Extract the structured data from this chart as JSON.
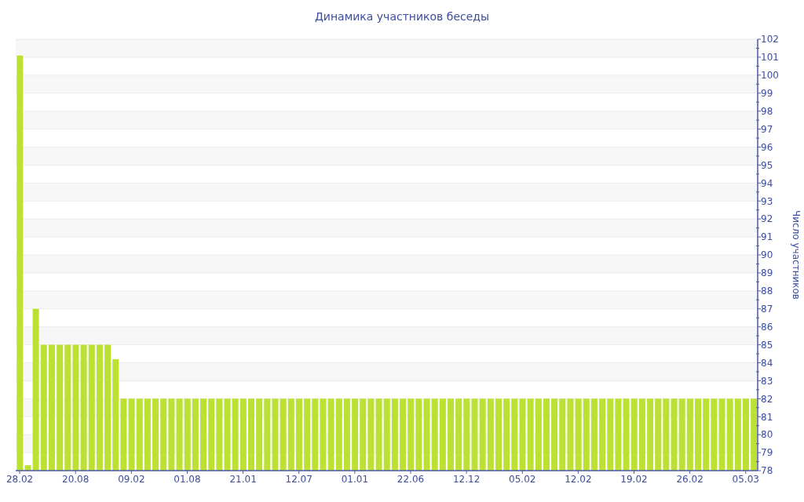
{
  "chart_data": {
    "type": "bar",
    "title": "Динамика участников беседы",
    "ylabel": "Число участников",
    "categories": [
      "28.02",
      null,
      null,
      null,
      null,
      null,
      null,
      "20.08",
      null,
      null,
      null,
      null,
      null,
      null,
      "09.02",
      null,
      null,
      null,
      null,
      null,
      null,
      "01.08",
      null,
      null,
      null,
      null,
      null,
      null,
      "21.01",
      null,
      null,
      null,
      null,
      null,
      null,
      "12.07",
      null,
      null,
      null,
      null,
      null,
      null,
      "01.01",
      null,
      null,
      null,
      null,
      null,
      null,
      "22.06",
      null,
      null,
      null,
      null,
      null,
      null,
      "12.12",
      null,
      null,
      null,
      null,
      null,
      null,
      "05.02",
      null,
      null,
      null,
      null,
      null,
      null,
      "12.02",
      null,
      null,
      null,
      null,
      null,
      null,
      "19.02",
      null,
      null,
      null,
      null,
      null,
      null,
      "26.02",
      null,
      null,
      null,
      null,
      null,
      null,
      "05.03",
      null
    ],
    "values": [
      101.1,
      78.3,
      87,
      85,
      85,
      85,
      85,
      85,
      85,
      85,
      85,
      85,
      84.2,
      82,
      82,
      82,
      82,
      82,
      82,
      82,
      82,
      82,
      82,
      82,
      82,
      82,
      82,
      82,
      82,
      82,
      82,
      82,
      82,
      82,
      82,
      82,
      82,
      82,
      82,
      82,
      82,
      82,
      82,
      82,
      82,
      82,
      82,
      82,
      82,
      82,
      82,
      82,
      82,
      82,
      82,
      82,
      82,
      82,
      82,
      82,
      82,
      82,
      82,
      82,
      82,
      82,
      82,
      82,
      82,
      82,
      82,
      82,
      82,
      82,
      82,
      82,
      82,
      82,
      82,
      82,
      82,
      82,
      82,
      82,
      82,
      82,
      82,
      82,
      82,
      82,
      82,
      82,
      82
    ],
    "color": "#bde133",
    "ylim": [
      78,
      102
    ],
    "yticks": [
      78,
      {
        "value": 78.5,
        "label": null
      },
      79,
      {
        "value": 79.5,
        "label": null
      },
      80,
      {
        "value": 80.5,
        "label": null
      },
      81,
      {
        "value": 81.5,
        "label": null
      },
      82,
      {
        "value": 82.5,
        "label": null
      },
      83,
      {
        "value": 83.5,
        "label": null
      },
      84,
      {
        "value": 84.5,
        "label": null
      },
      85,
      {
        "value": 85.5,
        "label": null
      },
      86,
      {
        "value": 86.5,
        "label": null
      },
      87,
      {
        "value": 87.5,
        "label": null
      },
      88,
      {
        "value": 88.5,
        "label": null
      },
      89,
      {
        "value": 89.5,
        "label": null
      },
      90,
      {
        "value": 90.5,
        "label": null
      },
      91,
      {
        "value": 91.5,
        "label": null
      },
      92,
      {
        "value": 92.5,
        "label": null
      },
      93,
      {
        "value": 93.5,
        "label": null
      },
      94,
      {
        "value": 94.5,
        "label": null
      },
      95,
      {
        "value": 95.5,
        "label": null
      },
      96,
      {
        "value": 96.5,
        "label": null
      },
      97,
      {
        "value": 97.5,
        "label": null
      },
      98,
      {
        "value": 98.5,
        "label": null
      },
      99,
      {
        "value": 99.5,
        "label": null
      },
      100,
      {
        "value": 100.5,
        "label": null
      },
      101,
      {
        "value": 101.5,
        "label": null
      },
      102
    ],
    "grid": "y"
  }
}
